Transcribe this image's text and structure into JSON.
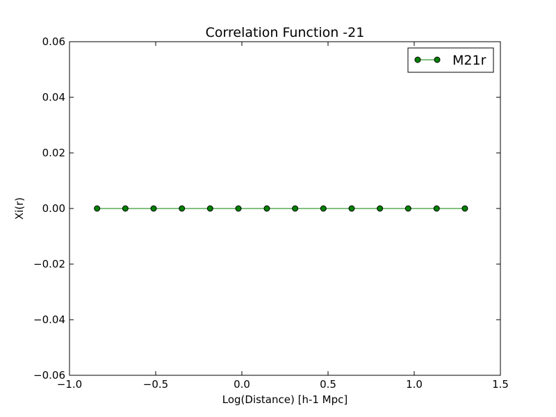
{
  "chart_data": {
    "type": "line",
    "title": "Correlation Function -21",
    "xlabel": "Log(Distance) [h-1 Mpc]",
    "ylabel": "Xi(r)",
    "xlim": [
      -1.0,
      1.5
    ],
    "ylim": [
      -0.06,
      0.06
    ],
    "xticks": [
      -1.0,
      -0.5,
      0.0,
      0.5,
      1.0,
      1.5
    ],
    "xtick_labels": [
      "−1.0",
      "−0.5",
      "0.0",
      "0.5",
      "1.0",
      "1.5"
    ],
    "yticks": [
      -0.06,
      -0.04,
      -0.02,
      0.0,
      0.02,
      0.04,
      0.06
    ],
    "ytick_labels": [
      "−0.06",
      "−0.04",
      "−0.02",
      "0.00",
      "0.02",
      "0.04",
      "0.06"
    ],
    "grid": false,
    "legend_position": "top-right",
    "series": [
      {
        "name": "M21r",
        "color": "#008000",
        "marker": "circle",
        "x": [
          -0.84,
          -0.676,
          -0.512,
          -0.348,
          -0.184,
          -0.02,
          0.145,
          0.309,
          0.473,
          0.637,
          0.801,
          0.965,
          1.13,
          1.294
        ],
        "y": [
          0,
          0,
          0,
          0,
          0,
          0,
          0,
          0,
          0,
          0,
          0,
          0,
          0,
          0
        ]
      }
    ]
  }
}
